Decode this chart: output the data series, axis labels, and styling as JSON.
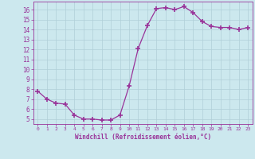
{
  "x": [
    0,
    1,
    2,
    3,
    4,
    5,
    6,
    7,
    8,
    9,
    10,
    11,
    12,
    13,
    14,
    15,
    16,
    17,
    18,
    19,
    20,
    21,
    22,
    23
  ],
  "y": [
    7.8,
    7.0,
    6.6,
    6.5,
    5.4,
    5.0,
    5.0,
    4.9,
    4.9,
    5.4,
    8.3,
    12.1,
    14.4,
    16.1,
    16.2,
    16.0,
    16.3,
    15.7,
    14.8,
    14.3,
    14.2,
    14.2,
    14.0,
    14.2
  ],
  "line_color": "#993399",
  "marker": "+",
  "marker_size": 4,
  "bg_color": "#cce8ee",
  "grid_color": "#b0cfd8",
  "xlabel": "Windchill (Refroidissement éolien,°C)",
  "xlabel_color": "#993399",
  "tick_color": "#993399",
  "xlim": [
    -0.5,
    23.5
  ],
  "ylim": [
    4.5,
    16.8
  ],
  "yticks": [
    5,
    6,
    7,
    8,
    9,
    10,
    11,
    12,
    13,
    14,
    15,
    16
  ],
  "xticks": [
    0,
    1,
    2,
    3,
    4,
    5,
    6,
    7,
    8,
    9,
    10,
    11,
    12,
    13,
    14,
    15,
    16,
    17,
    18,
    19,
    20,
    21,
    22,
    23
  ],
  "figsize": [
    3.2,
    2.0
  ],
  "dpi": 100
}
